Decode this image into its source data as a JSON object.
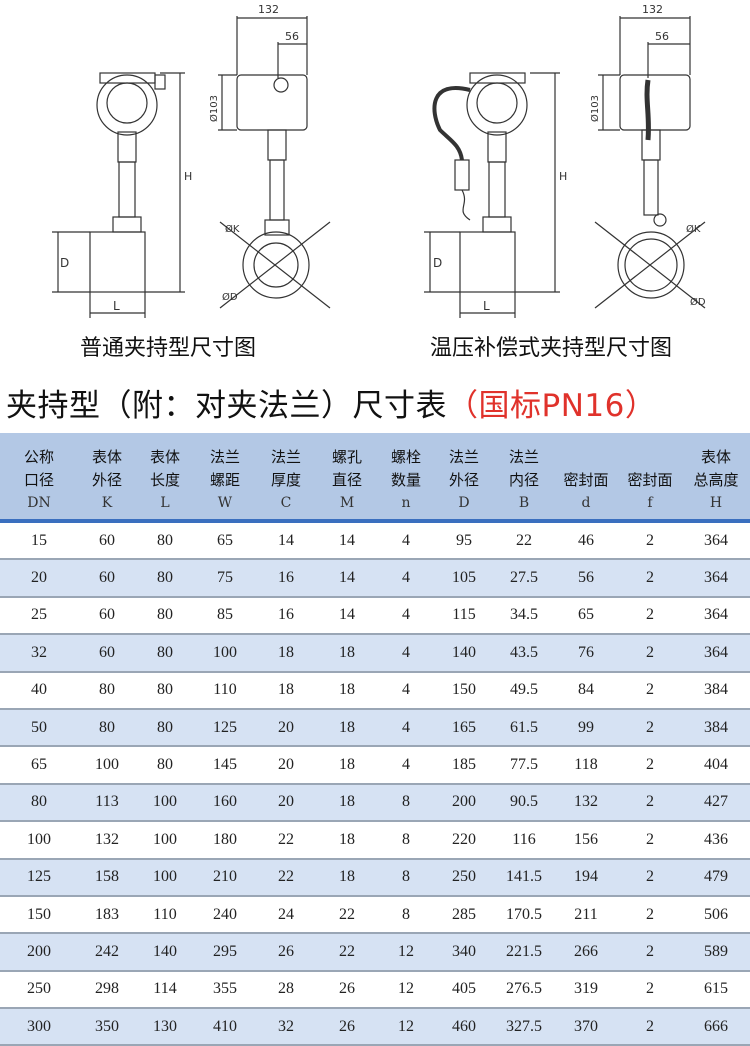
{
  "drawings": {
    "left": {
      "caption": "普通夹持型尺寸图",
      "dims": {
        "width": "132",
        "offset": "56",
        "housing_dia": "Ø103",
        "height": "H",
        "body_dia": "D",
        "length": "L",
        "k": "ØK",
        "flange_d": "ØD"
      }
    },
    "right": {
      "caption": "温压补偿式夹持型尺寸图",
      "dims": {
        "width": "132",
        "offset": "56",
        "housing_dia": "Ø103",
        "height": "H",
        "body_dia": "D",
        "length": "L",
        "k": "ØK",
        "flange_d": "ØD"
      }
    }
  },
  "title": {
    "main": "夹持型（附：对夹法兰）尺寸表",
    "standard": "（国标PN16）"
  },
  "table": {
    "columns": [
      {
        "line1": "公称",
        "line2": "口径",
        "sym": "DN"
      },
      {
        "line1": "表体",
        "line2": "外径",
        "sym": "K"
      },
      {
        "line1": "表体",
        "line2": "长度",
        "sym": "L"
      },
      {
        "line1": "法兰",
        "line2": "螺距",
        "sym": "W"
      },
      {
        "line1": "法兰",
        "line2": "厚度",
        "sym": "C"
      },
      {
        "line1": "螺孔",
        "line2": "直径",
        "sym": "M"
      },
      {
        "line1": "螺栓",
        "line2": "数量",
        "sym": "n"
      },
      {
        "line1": "法兰",
        "line2": "外径",
        "sym": "D"
      },
      {
        "line1": "法兰",
        "line2": "内径",
        "sym": "B"
      },
      {
        "line1": "",
        "line2": "密封面",
        "sym": "d"
      },
      {
        "line1": "",
        "line2": "密封面",
        "sym": "f"
      },
      {
        "line1": "表体",
        "line2": "总高度",
        "sym": "H"
      }
    ],
    "rows": [
      [
        "15",
        "60",
        "80",
        "65",
        "14",
        "14",
        "4",
        "95",
        "22",
        "46",
        "2",
        "364"
      ],
      [
        "20",
        "60",
        "80",
        "75",
        "16",
        "14",
        "4",
        "105",
        "27.5",
        "56",
        "2",
        "364"
      ],
      [
        "25",
        "60",
        "80",
        "85",
        "16",
        "14",
        "4",
        "115",
        "34.5",
        "65",
        "2",
        "364"
      ],
      [
        "32",
        "60",
        "80",
        "100",
        "18",
        "18",
        "4",
        "140",
        "43.5",
        "76",
        "2",
        "364"
      ],
      [
        "40",
        "80",
        "80",
        "110",
        "18",
        "18",
        "4",
        "150",
        "49.5",
        "84",
        "2",
        "384"
      ],
      [
        "50",
        "80",
        "80",
        "125",
        "20",
        "18",
        "4",
        "165",
        "61.5",
        "99",
        "2",
        "384"
      ],
      [
        "65",
        "100",
        "80",
        "145",
        "20",
        "18",
        "4",
        "185",
        "77.5",
        "118",
        "2",
        "404"
      ],
      [
        "80",
        "113",
        "100",
        "160",
        "20",
        "18",
        "8",
        "200",
        "90.5",
        "132",
        "2",
        "427"
      ],
      [
        "100",
        "132",
        "100",
        "180",
        "22",
        "18",
        "8",
        "220",
        "116",
        "156",
        "2",
        "436"
      ],
      [
        "125",
        "158",
        "100",
        "210",
        "22",
        "18",
        "8",
        "250",
        "141.5",
        "194",
        "2",
        "479"
      ],
      [
        "150",
        "183",
        "110",
        "240",
        "24",
        "22",
        "8",
        "285",
        "170.5",
        "211",
        "2",
        "506"
      ],
      [
        "200",
        "242",
        "140",
        "295",
        "26",
        "22",
        "12",
        "340",
        "221.5",
        "266",
        "2",
        "589"
      ],
      [
        "250",
        "298",
        "114",
        "355",
        "28",
        "26",
        "12",
        "405",
        "276.5",
        "319",
        "2",
        "615"
      ],
      [
        "300",
        "350",
        "130",
        "410",
        "32",
        "26",
        "12",
        "460",
        "327.5",
        "370",
        "2",
        "666"
      ]
    ]
  },
  "colors": {
    "header_bg": "#b3c8e5",
    "stripe": "#d6e2f3",
    "accent_red": "#e0322b",
    "rule_blue": "#3a6fbf"
  }
}
